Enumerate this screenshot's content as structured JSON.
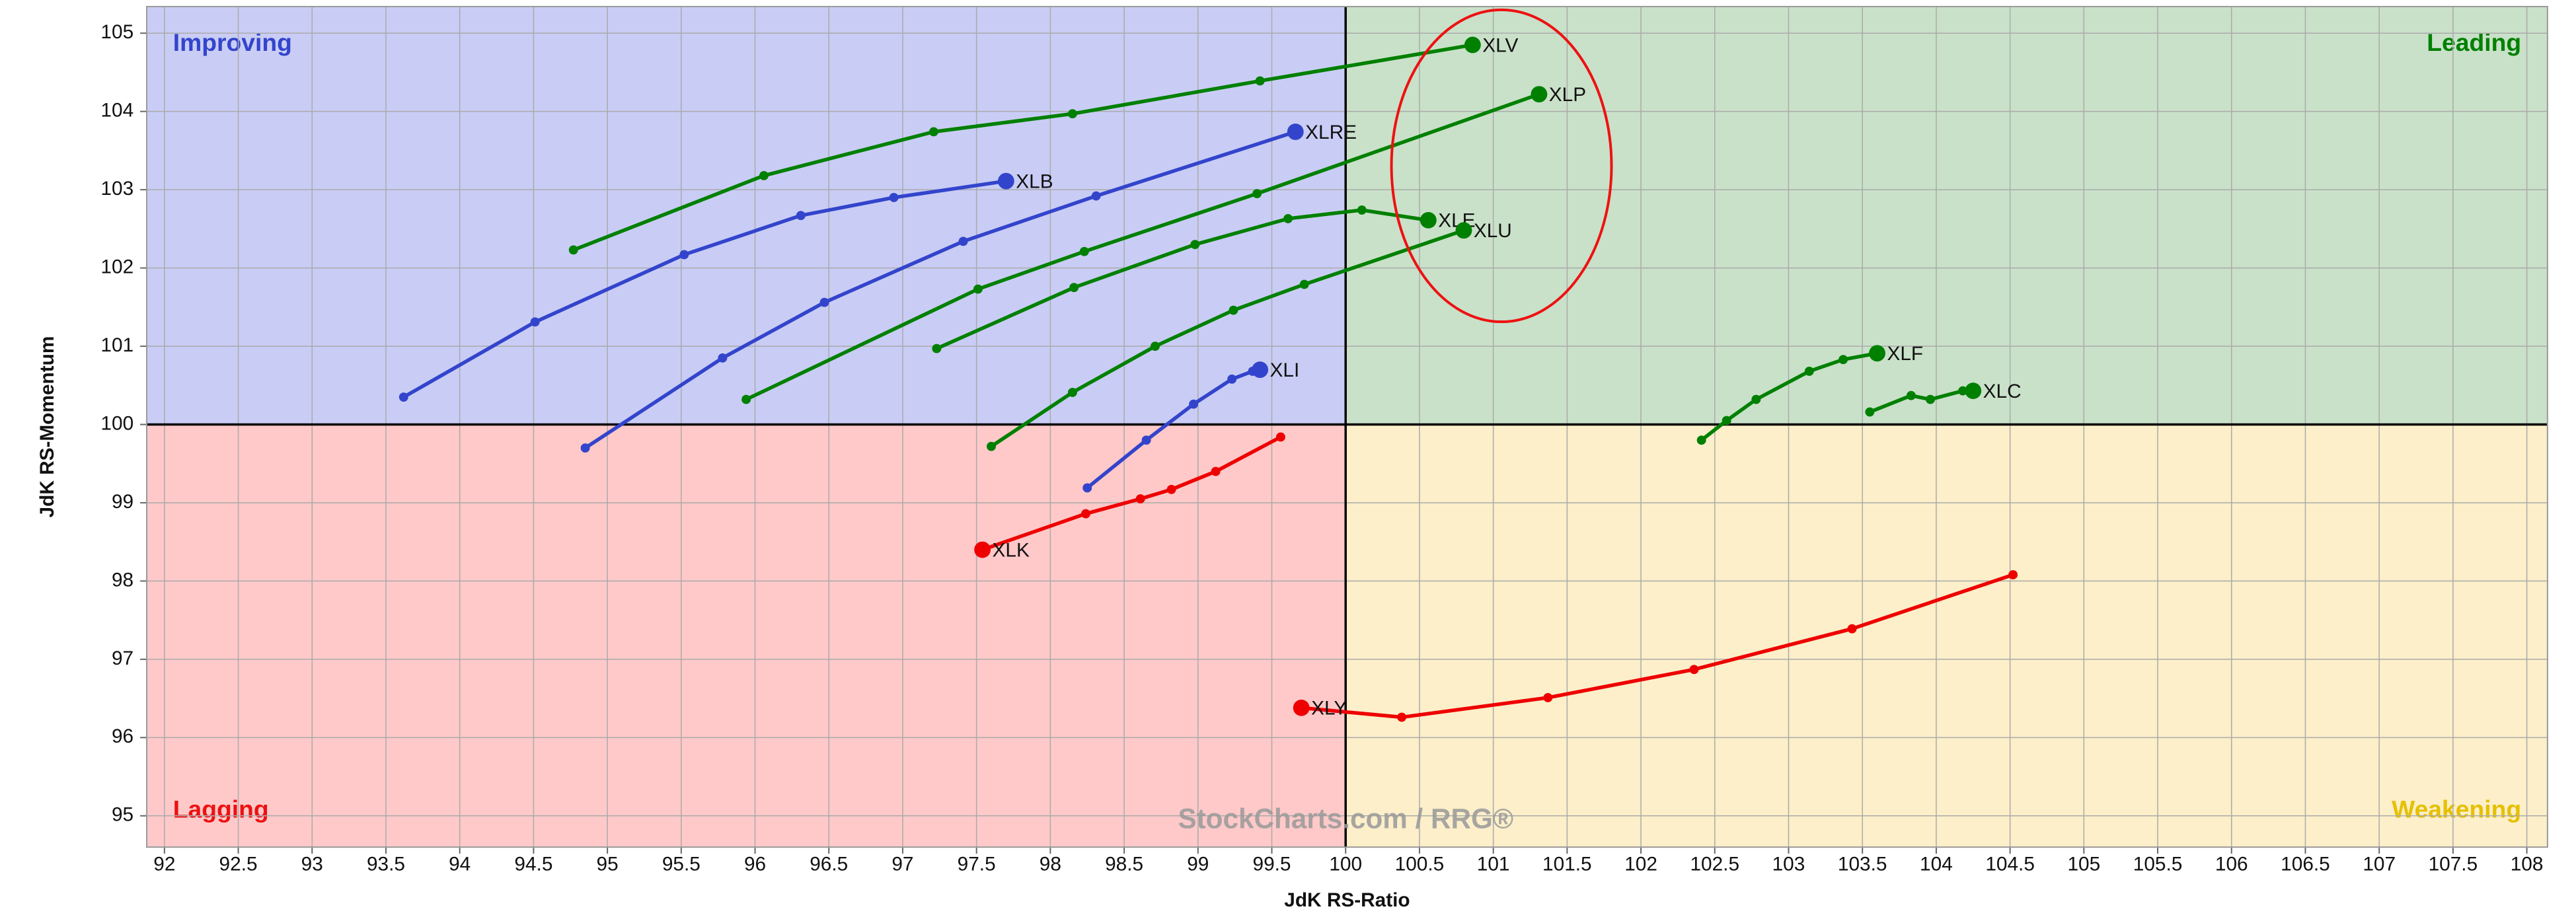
{
  "chart_data": {
    "type": "rrg",
    "x_label": "JdK RS-Ratio",
    "y_label": "JdK RS-Momentum",
    "watermark": "StockCharts.com / RRG®",
    "xlim": [
      91.88,
      108.14
    ],
    "ylim": [
      94.6,
      105.34
    ],
    "xticks": [
      92,
      92.5,
      93,
      93.5,
      94,
      94.5,
      95,
      95.5,
      96,
      96.5,
      97,
      97.5,
      98,
      98.5,
      99,
      99.5,
      100,
      100.5,
      101,
      101.5,
      102,
      102.5,
      103,
      103.5,
      104,
      104.5,
      105,
      105.5,
      106,
      106.5,
      107,
      107.5,
      108
    ],
    "yticks": [
      95,
      96,
      97,
      98,
      99,
      100,
      101,
      102,
      103,
      104,
      105
    ],
    "grid": true,
    "center": [
      100,
      100
    ],
    "quadrants": [
      {
        "label": "Improving",
        "corner": "top-left",
        "color": "#3344cc",
        "fill": "#c9cdf5"
      },
      {
        "label": "Leading",
        "corner": "top-right",
        "color": "#008000",
        "fill": "#c9e1c9"
      },
      {
        "label": "Lagging",
        "corner": "bottom-left",
        "color": "#ee1111",
        "fill": "#ffc9c9"
      },
      {
        "label": "Weakening",
        "corner": "bottom-right",
        "color": "#e6c000",
        "fill": "#fcefc9"
      }
    ],
    "series": [
      {
        "name": "XLV",
        "color": "#008000",
        "x": [
          94.77,
          96.06,
          97.21,
          98.15,
          99.42,
          100.86
        ],
        "values": [
          102.23,
          103.18,
          103.74,
          103.97,
          104.39,
          104.85
        ]
      },
      {
        "name": "XLP",
        "color": "#008000",
        "x": [
          95.94,
          97.51,
          98.23,
          99.4,
          101.31
        ],
        "values": [
          100.32,
          101.73,
          102.21,
          102.95,
          104.22
        ]
      },
      {
        "name": "XLRE",
        "color": "#3344cc",
        "x": [
          94.85,
          95.78,
          96.47,
          97.41,
          98.31,
          99.66
        ],
        "values": [
          99.7,
          100.85,
          101.56,
          102.34,
          102.92,
          103.74
        ]
      },
      {
        "name": "XLB",
        "color": "#3344cc",
        "x": [
          93.62,
          94.51,
          95.52,
          96.31,
          96.94,
          97.7
        ],
        "values": [
          100.35,
          101.31,
          102.17,
          102.67,
          102.9,
          103.11
        ]
      },
      {
        "name": "XLE",
        "color": "#008000",
        "x": [
          97.23,
          98.16,
          98.98,
          99.61,
          100.11,
          100.56
        ],
        "values": [
          100.97,
          101.75,
          102.3,
          102.63,
          102.74,
          102.61
        ]
      },
      {
        "name": "XLU",
        "color": "#008000",
        "x": [
          97.6,
          98.15,
          98.71,
          99.24,
          99.72,
          100.8
        ],
        "values": [
          99.72,
          100.41,
          101.0,
          101.46,
          101.79,
          102.48
        ]
      },
      {
        "name": "XLI",
        "color": "#3344cc",
        "x": [
          98.25,
          98.65,
          98.97,
          99.23,
          99.37,
          99.42
        ],
        "values": [
          99.19,
          99.8,
          100.26,
          100.58,
          100.68,
          100.7
        ]
      },
      {
        "name": "XLK",
        "color": "#ee0000",
        "x": [
          99.56,
          99.12,
          98.82,
          98.61,
          98.24,
          97.54
        ],
        "values": [
          99.84,
          99.4,
          99.17,
          99.05,
          98.86,
          98.4
        ]
      },
      {
        "name": "XLF",
        "color": "#008000",
        "x": [
          102.41,
          102.58,
          102.78,
          103.14,
          103.37,
          103.6
        ],
        "values": [
          99.8,
          100.05,
          100.32,
          100.68,
          100.83,
          100.91
        ]
      },
      {
        "name": "XLC",
        "color": "#008000",
        "x": [
          103.55,
          103.83,
          103.96,
          104.18,
          104.25
        ],
        "values": [
          100.16,
          100.37,
          100.32,
          100.43,
          100.43
        ]
      },
      {
        "name": "XLY",
        "color": "#ee0000",
        "x": [
          104.52,
          103.43,
          102.36,
          101.37,
          100.38,
          99.7
        ],
        "values": [
          98.08,
          97.39,
          96.87,
          96.51,
          96.26,
          96.38
        ]
      }
    ]
  }
}
